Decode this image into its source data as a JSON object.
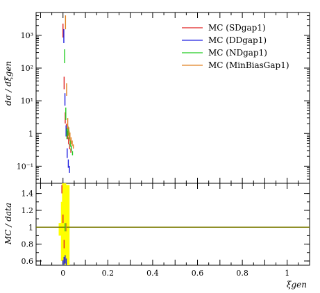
{
  "chart_data": [
    {
      "type": "line",
      "panel": "main",
      "ylabel": "dσ / dξgen",
      "yscale": "log",
      "ylim": [
        0.03,
        5000
      ],
      "xlim": [
        -0.12,
        1.1
      ],
      "y_ticks": [
        {
          "value": 1000,
          "label": "10³"
        },
        {
          "value": 100,
          "label": "10²"
        },
        {
          "value": 10,
          "label": "10¹"
        },
        {
          "value": 1,
          "label": "1"
        },
        {
          "value": 0.1,
          "label": "10⁻¹"
        }
      ],
      "legend_position": "top-right",
      "series": [
        {
          "name": "MC (SDgap1)",
          "color": "#e02020",
          "x": [
            0.0,
            0.005,
            0.01,
            0.015,
            0.02,
            0.025,
            0.03,
            0.035
          ],
          "y": [
            1400,
            35,
            3.0,
            1.4,
            0.9,
            0.6,
            0.4,
            0.3
          ]
        },
        {
          "name": "MC (DDgap1)",
          "color": "#2020e0",
          "x": [
            0.0,
            0.005,
            0.01,
            0.015,
            0.02,
            0.025
          ],
          "y": [
            950,
            11,
            1.2,
            0.25,
            0.12,
            0.08
          ]
        },
        {
          "name": "MC (NDgap1)",
          "color": "#22cc22",
          "x": [
            0.0,
            0.005,
            0.01,
            0.015,
            0.02,
            0.025,
            0.03,
            0.035
          ],
          "y": [
            230,
            4,
            1.0,
            1.2,
            0.9,
            0.5,
            0.35,
            0.25
          ]
        },
        {
          "name": "MC (MinBiasGap1)",
          "color": "#e08020",
          "x": [
            0.0,
            0.005,
            0.01,
            0.015,
            0.02,
            0.025,
            0.03,
            0.035
          ],
          "y": [
            2500,
            22,
            2.0,
            1.1,
            0.8,
            0.6,
            0.5,
            0.4
          ]
        }
      ]
    },
    {
      "type": "line",
      "panel": "ratio",
      "ylabel": "MC / data",
      "ylim": [
        0.55,
        1.52
      ],
      "xlim": [
        -0.12,
        1.1
      ],
      "y_ticks": [
        {
          "value": 1.4,
          "label": "1.4"
        },
        {
          "value": 1.2,
          "label": "1.2"
        },
        {
          "value": 1.0,
          "label": "1"
        },
        {
          "value": 0.8,
          "label": "0.8"
        },
        {
          "value": 0.6,
          "label": "0.6"
        }
      ],
      "x_ticks": [
        {
          "value": 0,
          "label": "0"
        },
        {
          "value": 0.2,
          "label": "0.2"
        },
        {
          "value": 0.4,
          "label": "0.4"
        },
        {
          "value": 0.6,
          "label": "0.6"
        },
        {
          "value": 0.8,
          "label": "0.8"
        },
        {
          "value": 1.0,
          "label": "1"
        }
      ],
      "xlabel": "ξgen",
      "reference_line": {
        "value": 1.0,
        "color": "#7a7a00"
      },
      "data_band": {
        "color": "#ffff00",
        "x": [
          -0.01,
          0.0,
          0.005,
          0.01,
          0.015,
          0.02
        ],
        "low": [
          0.9,
          0.6,
          0.55,
          0.7,
          0.75,
          0.55
        ],
        "high": [
          1.05,
          1.3,
          1.52,
          1.35,
          1.25,
          1.5
        ]
      },
      "series": [
        {
          "name": "MC (SDgap1)",
          "color": "#e02020",
          "x": [
            -0.005,
            0.0,
            0.005
          ],
          "y": [
            1.45,
            1.1,
            0.8
          ]
        },
        {
          "name": "MC (DDgap1)",
          "color": "#2020e0",
          "x": [
            -0.005,
            0.0,
            0.005,
            0.01
          ],
          "y": [
            0.56,
            0.6,
            0.62,
            0.58
          ]
        },
        {
          "name": "MC (NDgap1)",
          "color": "#22cc22",
          "x": [
            0.0
          ],
          "y": [
            1.0
          ]
        },
        {
          "name": "MC (MinBiasGap1)",
          "color": "#e08020",
          "x": [
            0.0
          ],
          "y": [
            1.0
          ]
        }
      ]
    }
  ]
}
